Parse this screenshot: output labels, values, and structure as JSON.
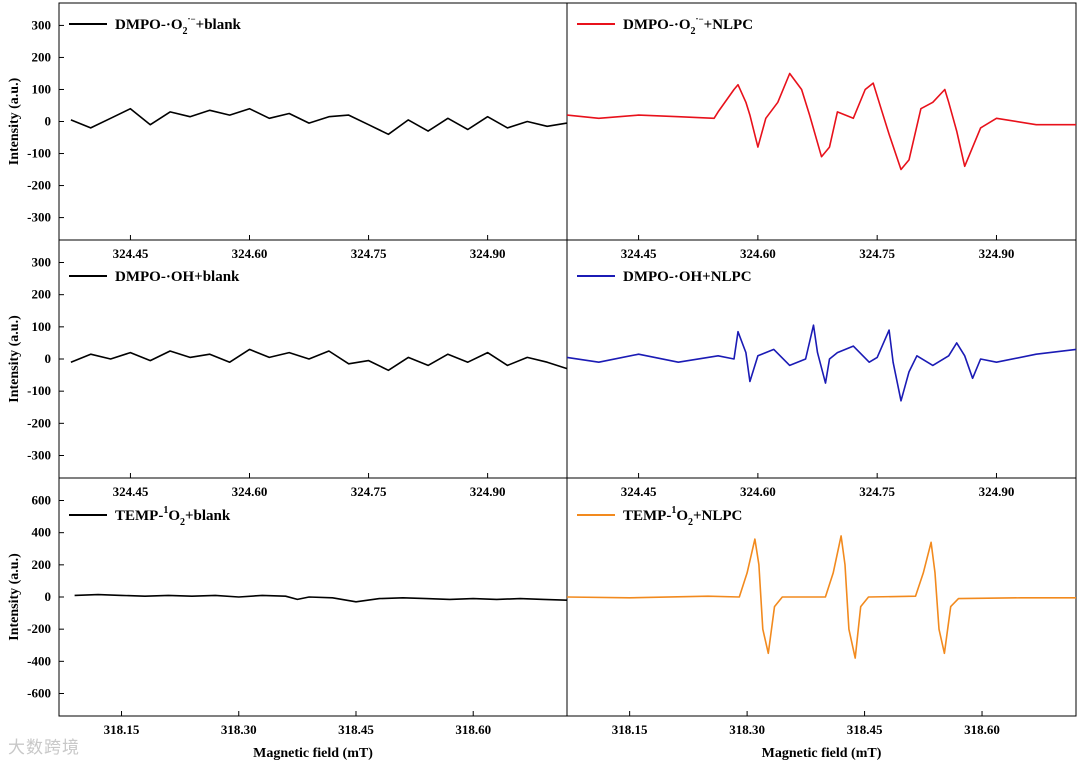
{
  "watermark": "大数跨境",
  "chart_data": [
    {
      "type": "line",
      "id": "p1",
      "legend": [
        "DMPO-·O",
        "2",
        "·−",
        "+blank"
      ],
      "series": [
        {
          "name": "DMPO-·O2·−+blank",
          "color": "#000000",
          "x": [
            324.375,
            324.4,
            324.425,
            324.45,
            324.475,
            324.5,
            324.525,
            324.55,
            324.575,
            324.6,
            324.625,
            324.65,
            324.675,
            324.7,
            324.725,
            324.75,
            324.775,
            324.8,
            324.825,
            324.85,
            324.875,
            324.9,
            324.925,
            324.95,
            324.975,
            325.0
          ],
          "y": [
            5,
            -20,
            10,
            40,
            -10,
            30,
            15,
            35,
            20,
            40,
            10,
            25,
            -5,
            15,
            20,
            -10,
            -40,
            5,
            -30,
            10,
            -25,
            15,
            -20,
            0,
            -15,
            -5
          ]
        }
      ],
      "xticks": [
        "324.45",
        "324.60",
        "324.75",
        "324.90"
      ],
      "xtick_values": [
        324.45,
        324.6,
        324.75,
        324.9
      ],
      "xlim": [
        324.36,
        325.0
      ],
      "yticks": [
        -300,
        -200,
        -100,
        0,
        100,
        200,
        300
      ],
      "ylim": [
        -370,
        370
      ],
      "ylabel": "Intensity (a.u.)",
      "xlabel": ""
    },
    {
      "type": "line",
      "id": "p2",
      "legend": [
        "DMPO-·O",
        "2",
        "·−",
        "+NLPC"
      ],
      "series": [
        {
          "name": "DMPO-·O2·−+NLPC",
          "color": "#e8111b",
          "x": [
            324.36,
            324.4,
            324.45,
            324.5,
            324.545,
            324.55,
            324.57,
            324.575,
            324.585,
            324.59,
            324.6,
            324.61,
            324.625,
            324.64,
            324.655,
            324.665,
            324.68,
            324.69,
            324.7,
            324.72,
            324.735,
            324.745,
            324.755,
            324.765,
            324.78,
            324.79,
            324.805,
            324.82,
            324.835,
            324.84,
            324.85,
            324.86,
            324.88,
            324.9,
            324.95,
            325.0
          ],
          "y": [
            20,
            10,
            20,
            15,
            10,
            30,
            100,
            115,
            60,
            20,
            -80,
            10,
            60,
            150,
            100,
            20,
            -110,
            -80,
            30,
            10,
            100,
            120,
            40,
            -40,
            -150,
            -120,
            40,
            60,
            100,
            60,
            -30,
            -140,
            -20,
            10,
            -10,
            -10
          ]
        }
      ],
      "xticks": [
        "324.45",
        "324.60",
        "324.75",
        "324.90"
      ],
      "xtick_values": [
        324.45,
        324.6,
        324.75,
        324.9
      ],
      "xlim": [
        324.36,
        325.0
      ],
      "yticks": [
        -300,
        -200,
        -100,
        0,
        100,
        200,
        300
      ],
      "ylim": [
        -370,
        370
      ],
      "ylabel": "",
      "xlabel": ""
    },
    {
      "type": "line",
      "id": "p3",
      "legend": [
        "DMPO-·OH+blank"
      ],
      "series": [
        {
          "name": "DMPO-·OH+blank",
          "color": "#000000",
          "x": [
            324.375,
            324.4,
            324.425,
            324.45,
            324.475,
            324.5,
            324.525,
            324.55,
            324.575,
            324.6,
            324.625,
            324.65,
            324.675,
            324.7,
            324.725,
            324.75,
            324.775,
            324.8,
            324.825,
            324.85,
            324.875,
            324.9,
            324.925,
            324.95,
            324.975,
            325.0
          ],
          "y": [
            -10,
            15,
            0,
            20,
            -5,
            25,
            5,
            15,
            -10,
            30,
            5,
            20,
            0,
            25,
            -15,
            -5,
            -35,
            5,
            -20,
            15,
            -10,
            20,
            -20,
            5,
            -10,
            -30
          ]
        }
      ],
      "xticks": [
        "324.45",
        "324.60",
        "324.75",
        "324.90"
      ],
      "xtick_values": [
        324.45,
        324.6,
        324.75,
        324.9
      ],
      "xlim": [
        324.36,
        325.0
      ],
      "yticks": [
        -300,
        -200,
        -100,
        0,
        100,
        200,
        300
      ],
      "ylim": [
        -370,
        370
      ],
      "ylabel": "Intensity (a.u.)",
      "xlabel": ""
    },
    {
      "type": "line",
      "id": "p4",
      "legend": [
        "DMPO-·OH+NLPC"
      ],
      "series": [
        {
          "name": "DMPO-·OH+NLPC",
          "color": "#1b1bb5",
          "x": [
            324.36,
            324.4,
            324.45,
            324.5,
            324.55,
            324.57,
            324.575,
            324.585,
            324.59,
            324.6,
            324.62,
            324.64,
            324.66,
            324.67,
            324.675,
            324.685,
            324.69,
            324.7,
            324.72,
            324.74,
            324.75,
            324.765,
            324.77,
            324.78,
            324.79,
            324.8,
            324.82,
            324.84,
            324.85,
            324.86,
            324.87,
            324.88,
            324.9,
            324.95,
            325.0
          ],
          "y": [
            5,
            -10,
            15,
            -10,
            10,
            0,
            85,
            20,
            -70,
            10,
            30,
            -20,
            0,
            105,
            20,
            -75,
            0,
            20,
            40,
            -10,
            5,
            90,
            -10,
            -130,
            -40,
            10,
            -20,
            10,
            50,
            10,
            -60,
            0,
            -10,
            15,
            30
          ]
        }
      ],
      "xticks": [
        "324.45",
        "324.60",
        "324.75",
        "324.90"
      ],
      "xtick_values": [
        324.45,
        324.6,
        324.75,
        324.9
      ],
      "xlim": [
        324.36,
        325.0
      ],
      "yticks": [
        -300,
        -200,
        -100,
        0,
        100,
        200,
        300
      ],
      "ylim": [
        -370,
        370
      ],
      "ylabel": "",
      "xlabel": ""
    },
    {
      "type": "line",
      "id": "p5",
      "legend": [
        "TEMP-",
        "1",
        "O",
        "2",
        "+blank"
      ],
      "series": [
        {
          "name": "TEMP-1O2+blank",
          "color": "#000000",
          "x": [
            318.09,
            318.12,
            318.15,
            318.18,
            318.21,
            318.24,
            318.27,
            318.3,
            318.33,
            318.36,
            318.375,
            318.39,
            318.42,
            318.45,
            318.48,
            318.51,
            318.54,
            318.57,
            318.6,
            318.63,
            318.66,
            318.69,
            318.72
          ],
          "y": [
            10,
            15,
            10,
            5,
            10,
            5,
            10,
            0,
            10,
            5,
            -15,
            0,
            -5,
            -30,
            -10,
            -5,
            -10,
            -15,
            -10,
            -15,
            -10,
            -15,
            -20
          ]
        }
      ],
      "xticks": [
        "318.15",
        "318.30",
        "318.45",
        "318.60"
      ],
      "xtick_values": [
        318.15,
        318.3,
        318.45,
        318.6
      ],
      "xlim": [
        318.07,
        318.72
      ],
      "yticks": [
        -600,
        -400,
        -200,
        0,
        200,
        400,
        600
      ],
      "ylim": [
        -740,
        740
      ],
      "ylabel": "Intensity (a.u.)",
      "xlabel": "Magnetic field (mT)"
    },
    {
      "type": "line",
      "id": "p6",
      "legend": [
        "TEMP-",
        "1",
        "O",
        "2",
        "+NLPC"
      ],
      "series": [
        {
          "name": "TEMP-1O2+NLPC",
          "color": "#f28a1e",
          "x": [
            318.07,
            318.15,
            318.25,
            318.29,
            318.3,
            318.31,
            318.315,
            318.32,
            318.327,
            318.335,
            318.345,
            318.4,
            318.41,
            318.42,
            318.425,
            318.43,
            318.438,
            318.445,
            318.455,
            318.515,
            318.525,
            318.535,
            318.54,
            318.545,
            318.552,
            318.56,
            318.57,
            318.65,
            318.72
          ],
          "y": [
            0,
            -5,
            5,
            0,
            150,
            360,
            200,
            -200,
            -350,
            -60,
            0,
            0,
            150,
            380,
            200,
            -200,
            -380,
            -60,
            0,
            5,
            150,
            340,
            150,
            -200,
            -350,
            -60,
            -10,
            -5,
            -5
          ]
        }
      ],
      "xticks": [
        "318.15",
        "318.30",
        "318.45",
        "318.60"
      ],
      "xtick_values": [
        318.15,
        318.3,
        318.45,
        318.6
      ],
      "xlim": [
        318.07,
        318.72
      ],
      "yticks": [
        -600,
        -400,
        -200,
        0,
        200,
        400,
        600
      ],
      "ylim": [
        -740,
        740
      ],
      "ylabel": "",
      "xlabel": "Magnetic field (mT)"
    }
  ]
}
